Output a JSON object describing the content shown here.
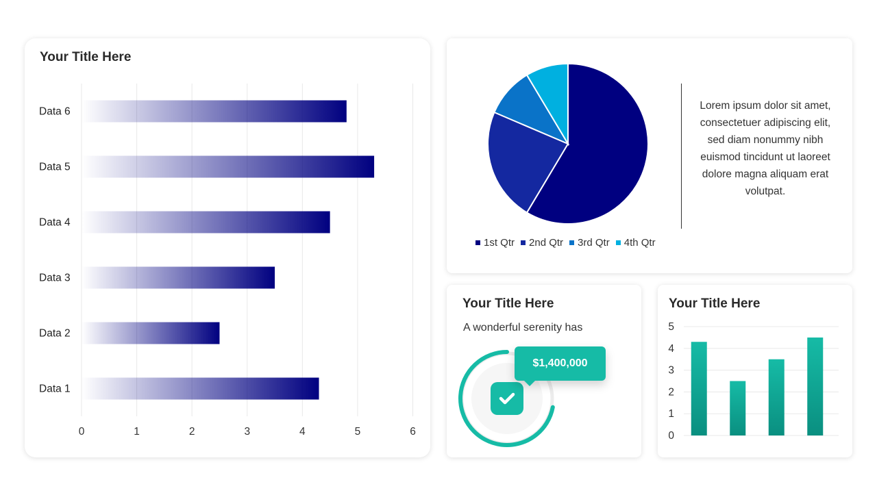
{
  "bar_card": {
    "title": "Your Title Here"
  },
  "pie_card": {
    "description": "Lorem ipsum dolor sit amet, consectetuer adipiscing elit, sed diam nonummy nibh euismod tincidunt ut laoreet dolore magna aliquam erat volutpat."
  },
  "kpi_card": {
    "title": "Your Title Here",
    "subtitle": "A wonderful serenity has",
    "value": "$1,400,000",
    "progress_fraction": 0.72,
    "icon": "check-icon"
  },
  "column_card": {
    "title": "Your Title Here"
  },
  "colors": {
    "navy": "#000080",
    "blue": "#1428a0",
    "mid_blue": "#0a73c8",
    "light_blue": "#00b0e0",
    "teal": "#16bba6",
    "teal_dark": "#0a8f80"
  },
  "chart_data": [
    {
      "type": "bar",
      "orientation": "horizontal",
      "categories": [
        "Data 1",
        "Data 2",
        "Data 3",
        "Data 4",
        "Data 5",
        "Data 6"
      ],
      "values": [
        4.3,
        2.5,
        3.5,
        4.5,
        5.3,
        4.8
      ],
      "xlim": [
        0,
        6
      ],
      "xticks": [
        "0",
        "1",
        "2",
        "3",
        "4",
        "5",
        "6"
      ],
      "grid": true
    },
    {
      "type": "pie",
      "series": [
        {
          "name": "1st Qtr",
          "value": 8.2
        },
        {
          "name": "2nd Qtr",
          "value": 3.2
        },
        {
          "name": "3rd Qtr",
          "value": 1.4
        },
        {
          "name": "4th Qtr",
          "value": 1.2
        }
      ],
      "legend": "bottom"
    },
    {
      "type": "bar",
      "orientation": "vertical",
      "categories": [
        "",
        "",
        "",
        ""
      ],
      "values": [
        4.3,
        2.5,
        3.5,
        4.5
      ],
      "ylim": [
        0,
        5
      ],
      "yticks": [
        "0",
        "1",
        "2",
        "3",
        "4",
        "5"
      ],
      "grid": true
    }
  ]
}
